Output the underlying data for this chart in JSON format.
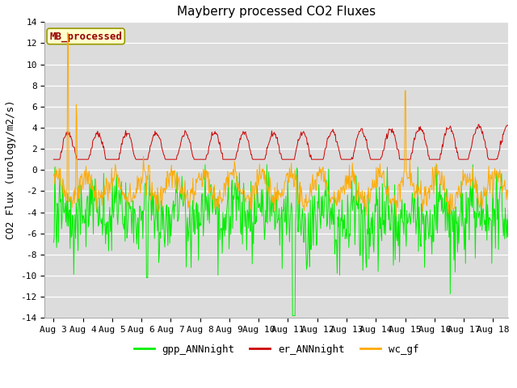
{
  "title": "Mayberry processed CO2 Fluxes",
  "ylabel": "CO2 Flux (urology/m2/s)",
  "ylim": [
    -14,
    14
  ],
  "yticks": [
    -14,
    -12,
    -10,
    -8,
    -6,
    -4,
    -2,
    0,
    2,
    4,
    6,
    8,
    10,
    12,
    14
  ],
  "gpp_color": "#00ee00",
  "er_color": "#cc0000",
  "wc_color": "#ffaa00",
  "background_color": "#dcdcdc",
  "grid_color": "#ffffff",
  "legend_label_gpp": "gpp_ANNnight",
  "legend_label_er": "er_ANNnight",
  "legend_label_wc": "wc_gf",
  "annotation_text": "MB_processed",
  "annotation_color": "#990000",
  "annotation_bg": "#ffffcc",
  "annotation_border": "#999900",
  "days_labels": [
    "Aug 3",
    "Aug 4",
    "Aug 5",
    "Aug 6",
    "Aug 7",
    "Aug 8",
    "Aug 9",
    "Aug 10",
    "Aug 11",
    "Aug 12",
    "Aug 13",
    "Aug 14",
    "Aug 15",
    "Aug 16",
    "Aug 17",
    "Aug 18"
  ],
  "tick_fontsize": 8,
  "ylabel_fontsize": 9,
  "title_fontsize": 11,
  "legend_fontsize": 9,
  "linewidth": 0.7
}
